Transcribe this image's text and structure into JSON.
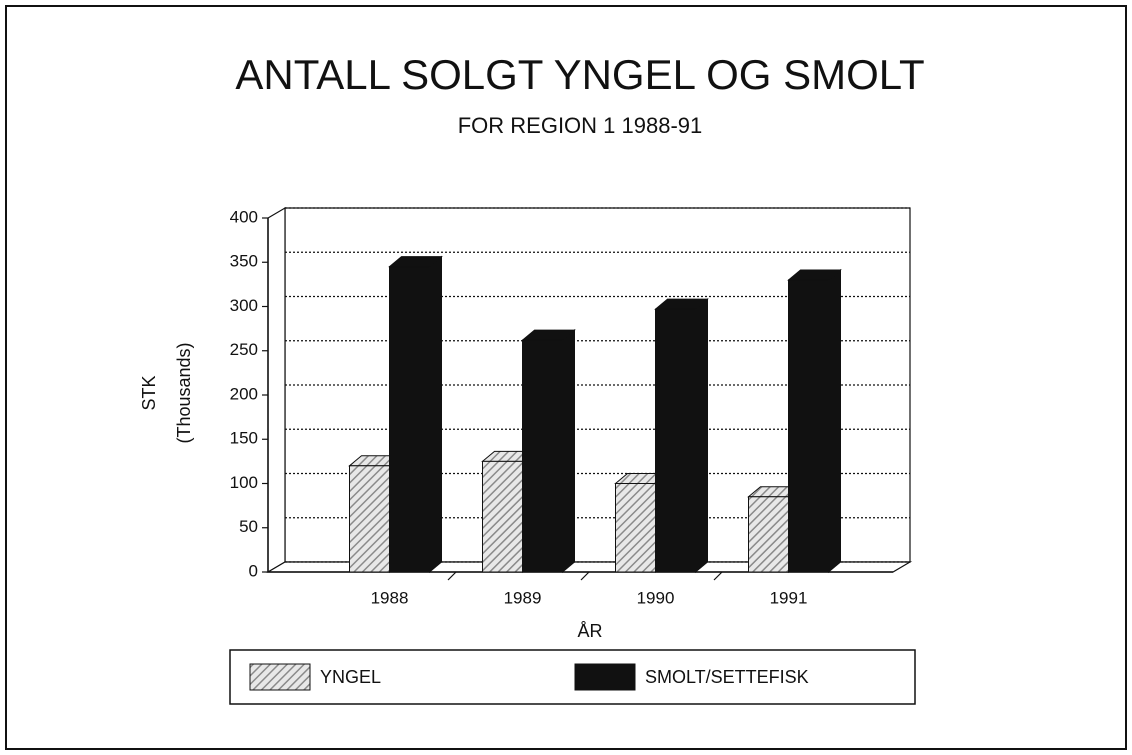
{
  "chart_data": {
    "type": "bar3d",
    "title": "ANTALL SOLGT YNGEL OG SMOLT",
    "subtitle": "FOR REGION 1 1988-91",
    "y_label": "STK",
    "y_label_unit": "(Thousands)",
    "x_label": "ÅR",
    "categories": [
      "1988",
      "1989",
      "1990",
      "1991"
    ],
    "series": [
      {
        "name": "YNGEL",
        "color": "#8a8a8a",
        "values": [
          120,
          125,
          100,
          85
        ]
      },
      {
        "name": "SMOLT/SETTEFISK",
        "color": "#111111",
        "values": [
          345,
          262,
          297,
          330
        ]
      }
    ],
    "ylim": [
      0,
      400
    ],
    "yticks": [
      0,
      50,
      100,
      150,
      200,
      250,
      300,
      350,
      400
    ],
    "grid": true
  }
}
